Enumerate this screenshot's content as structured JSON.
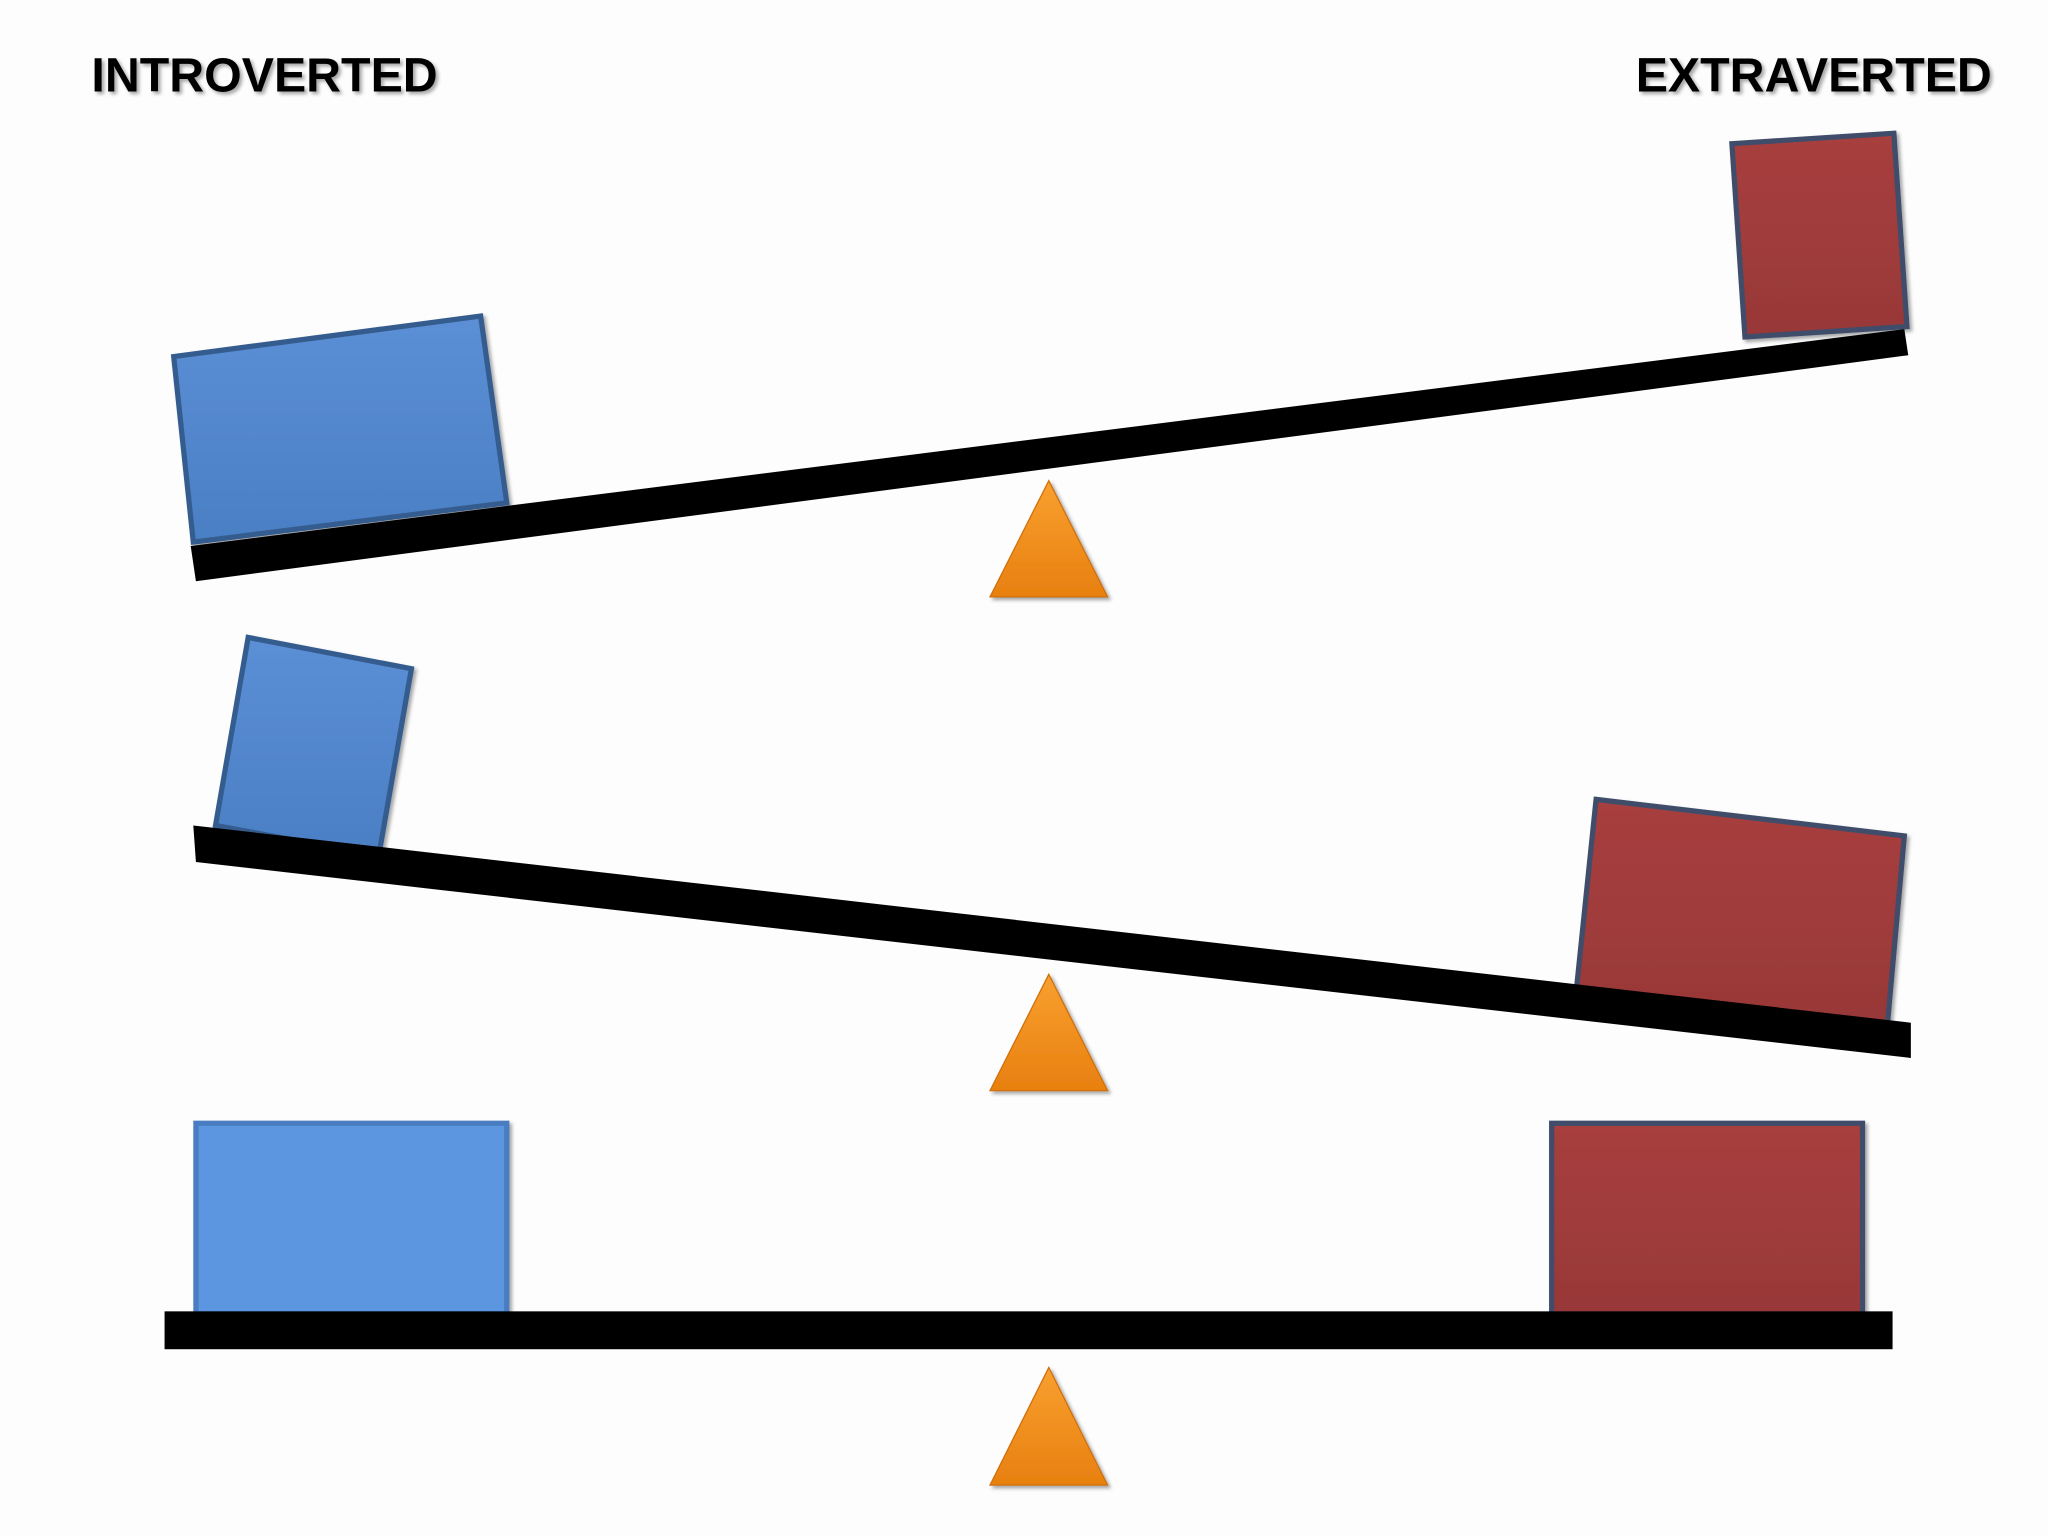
{
  "labels": {
    "left": "INTROVERTED",
    "right": "EXTRAVERTED"
  }
}
